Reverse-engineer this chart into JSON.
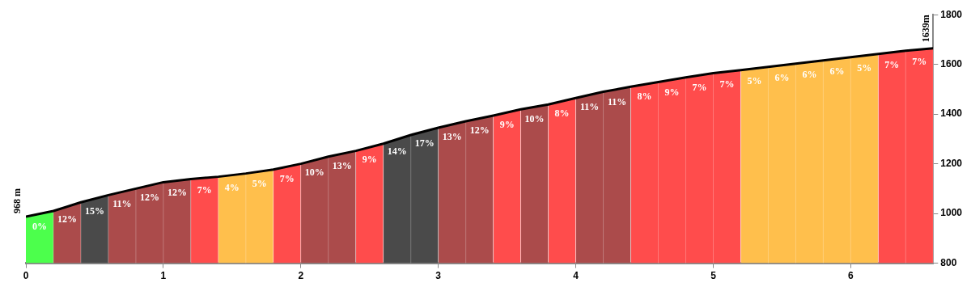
{
  "chart_data": {
    "type": "area",
    "xlim": [
      0,
      6.6
    ],
    "xticks": [
      0,
      1,
      2,
      3,
      4,
      5,
      6
    ],
    "ylim": [
      800,
      1800
    ],
    "yticks": [
      800,
      1000,
      1200,
      1400,
      1600,
      1800
    ],
    "series": [
      {
        "type": "area",
        "color": "#4cff4c",
        "x": [
          0,
          0.2
        ],
        "values": [
          987,
          1010
        ]
      },
      {
        "type": "area",
        "color": "#ab4b4b",
        "x": [
          0.2,
          0.4
        ],
        "values": [
          1010,
          1045
        ]
      },
      {
        "type": "area",
        "color": "#4a4a4a",
        "x": [
          0.4,
          0.6
        ],
        "values": [
          1045,
          1074
        ]
      },
      {
        "type": "area",
        "color": "#ab4b4b",
        "x": [
          0.6,
          0.8,
          1.0,
          1.2
        ],
        "values": [
          1074,
          1100,
          1126,
          1139
        ]
      },
      {
        "type": "area",
        "color": "#ff4c4c",
        "x": [
          1.2,
          1.4
        ],
        "values": [
          1139,
          1148
        ]
      },
      {
        "type": "area",
        "color": "#ffbf4c",
        "x": [
          1.4,
          1.6,
          1.8
        ],
        "values": [
          1148,
          1161,
          1177
        ]
      },
      {
        "type": "area",
        "color": "#ff4c4c",
        "x": [
          1.8,
          2.0
        ],
        "values": [
          1177,
          1200
        ]
      },
      {
        "type": "area",
        "color": "#ab4b4b",
        "x": [
          2.0,
          2.2,
          2.4
        ],
        "values": [
          1200,
          1229,
          1252
        ]
      },
      {
        "type": "area",
        "color": "#ff4c4c",
        "x": [
          2.4,
          2.6
        ],
        "values": [
          1252,
          1281
        ]
      },
      {
        "type": "area",
        "color": "#4a4a4a",
        "x": [
          2.6,
          2.8,
          3.0
        ],
        "values": [
          1281,
          1316,
          1345
        ]
      },
      {
        "type": "area",
        "color": "#ab4b4b",
        "x": [
          3.0,
          3.2,
          3.4
        ],
        "values": [
          1345,
          1371,
          1394
        ]
      },
      {
        "type": "area",
        "color": "#ff4c4c",
        "x": [
          3.4,
          3.6
        ],
        "values": [
          1394,
          1419
        ]
      },
      {
        "type": "area",
        "color": "#ab4b4b",
        "x": [
          3.6,
          3.8
        ],
        "values": [
          1419,
          1439
        ]
      },
      {
        "type": "area",
        "color": "#ff4c4c",
        "x": [
          3.8,
          4.0
        ],
        "values": [
          1439,
          1465
        ]
      },
      {
        "type": "area",
        "color": "#ab4b4b",
        "x": [
          4.0,
          4.2,
          4.4
        ],
        "values": [
          1465,
          1490,
          1510
        ]
      },
      {
        "type": "area",
        "color": "#ff4c4c",
        "x": [
          4.4,
          4.6,
          4.8,
          5.0,
          5.2
        ],
        "values": [
          1510,
          1529,
          1548,
          1565,
          1577
        ]
      },
      {
        "type": "area",
        "color": "#ffbf4c",
        "x": [
          5.2,
          5.4,
          5.6,
          5.8,
          6.0,
          6.2
        ],
        "values": [
          1577,
          1590,
          1603,
          1616,
          1629,
          1642
        ]
      },
      {
        "type": "area",
        "color": "#ff4c4c",
        "x": [
          6.2,
          6.4,
          6.6
        ],
        "values": [
          1642,
          1655,
          1665
        ]
      },
      {
        "type": "line",
        "color": "#000000",
        "x": [
          0,
          0.2,
          0.4,
          0.6,
          0.8,
          1.0,
          1.2,
          1.4,
          1.6,
          1.8,
          2.0,
          2.2,
          2.4,
          2.6,
          2.8,
          3.0,
          3.2,
          3.4,
          3.6,
          3.8,
          4.0,
          4.2,
          4.4,
          4.6,
          4.8,
          5.0,
          5.2,
          5.4,
          5.6,
          5.8,
          6.0,
          6.2,
          6.4,
          6.6
        ],
        "values": [
          987,
          1010,
          1045,
          1074,
          1100,
          1126,
          1139,
          1148,
          1161,
          1177,
          1200,
          1229,
          1252,
          1281,
          1316,
          1345,
          1371,
          1394,
          1419,
          1439,
          1465,
          1490,
          1510,
          1529,
          1548,
          1565,
          1577,
          1590,
          1603,
          1616,
          1629,
          1642,
          1655,
          1665
        ]
      }
    ],
    "annotations": [
      {
        "text": "968 m",
        "x": 0,
        "y": 987
      },
      "1639m",
      {
        "text": "0%",
        "x": 0.1,
        "y": 999
      },
      {
        "text": "12%",
        "x": 0.3,
        "y": 1028
      },
      {
        "text": "15%",
        "x": 0.5,
        "y": 1060
      },
      {
        "text": "11%",
        "x": 0.7,
        "y": 1087
      },
      {
        "text": "12%",
        "x": 0.9,
        "y": 1113
      },
      {
        "text": "12%",
        "x": 1.1,
        "y": 1133
      },
      {
        "text": "7%",
        "x": 1.3,
        "y": 1144
      },
      {
        "text": "4%",
        "x": 1.5,
        "y": 1155
      },
      {
        "text": "5%",
        "x": 1.7,
        "y": 1169
      },
      {
        "text": "7%",
        "x": 1.9,
        "y": 1189
      },
      {
        "text": "10%",
        "x": 2.1,
        "y": 1215
      },
      {
        "text": "13%",
        "x": 2.3,
        "y": 1241
      },
      {
        "text": "9%",
        "x": 2.5,
        "y": 1267
      },
      {
        "text": "14%",
        "x": 2.7,
        "y": 1299
      },
      {
        "text": "17%",
        "x": 2.9,
        "y": 1331
      },
      {
        "text": "13%",
        "x": 3.1,
        "y": 1358
      },
      {
        "text": "12%",
        "x": 3.3,
        "y": 1383
      },
      {
        "text": "9%",
        "x": 3.5,
        "y": 1407
      },
      {
        "text": "10%",
        "x": 3.7,
        "y": 1429
      },
      {
        "text": "8%",
        "x": 3.9,
        "y": 1452
      },
      {
        "text": "11%",
        "x": 4.1,
        "y": 1478
      },
      {
        "text": "11%",
        "x": 4.3,
        "y": 1500
      },
      {
        "text": "8%",
        "x": 4.5,
        "y": 1520
      },
      {
        "text": "9%",
        "x": 4.7,
        "y": 1539
      },
      {
        "text": "7%",
        "x": 4.9,
        "y": 1557
      },
      {
        "text": "7%",
        "x": 5.1,
        "y": 1571
      },
      {
        "text": "5%",
        "x": 5.3,
        "y": 1584
      },
      {
        "text": "6%",
        "x": 5.5,
        "y": 1597
      },
      {
        "text": "6%",
        "x": 5.7,
        "y": 1610
      },
      {
        "text": "6%",
        "x": 5.9,
        "y": 1623
      },
      {
        "text": "5%",
        "x": 6.1,
        "y": 1636
      },
      {
        "text": "7%",
        "x": 6.3,
        "y": 1649
      },
      {
        "text": "7%",
        "x": 6.5,
        "y": 1660
      }
    ]
  }
}
